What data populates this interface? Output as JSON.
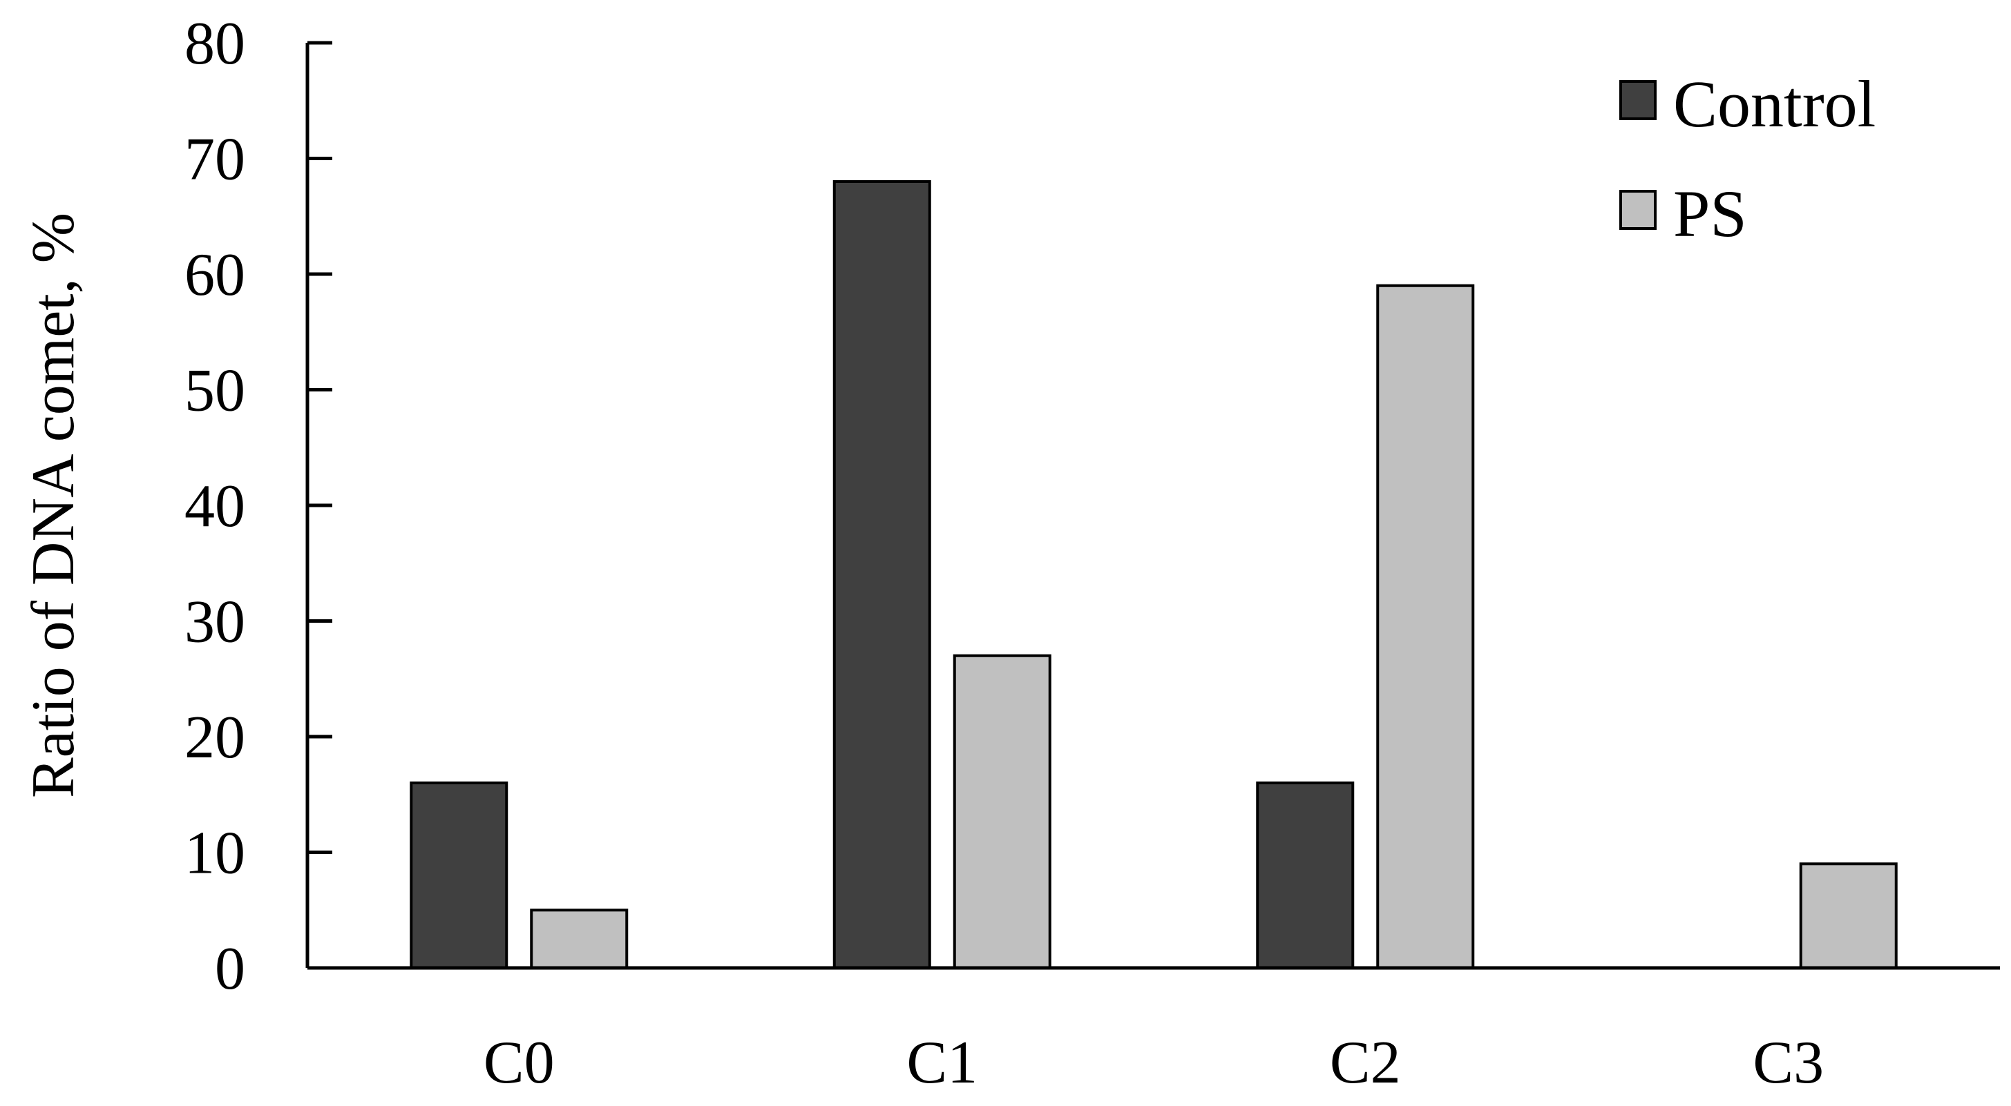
{
  "chart_data": {
    "type": "bar",
    "title": "",
    "xlabel": "",
    "ylabel": "Ratio of  DNA comet, %",
    "ylim": [
      0,
      80
    ],
    "yticks": [
      0,
      10,
      20,
      30,
      40,
      50,
      60,
      70,
      80
    ],
    "categories": [
      "C0",
      "C1",
      "C2",
      "C3"
    ],
    "series": [
      {
        "name": "Control",
        "values": [
          16,
          68,
          16,
          0
        ],
        "color": "#404040"
      },
      {
        "name": "PS",
        "values": [
          5,
          27,
          59,
          9
        ],
        "color": "#c0c0c0"
      }
    ],
    "grid": false,
    "legend": "top-right"
  }
}
